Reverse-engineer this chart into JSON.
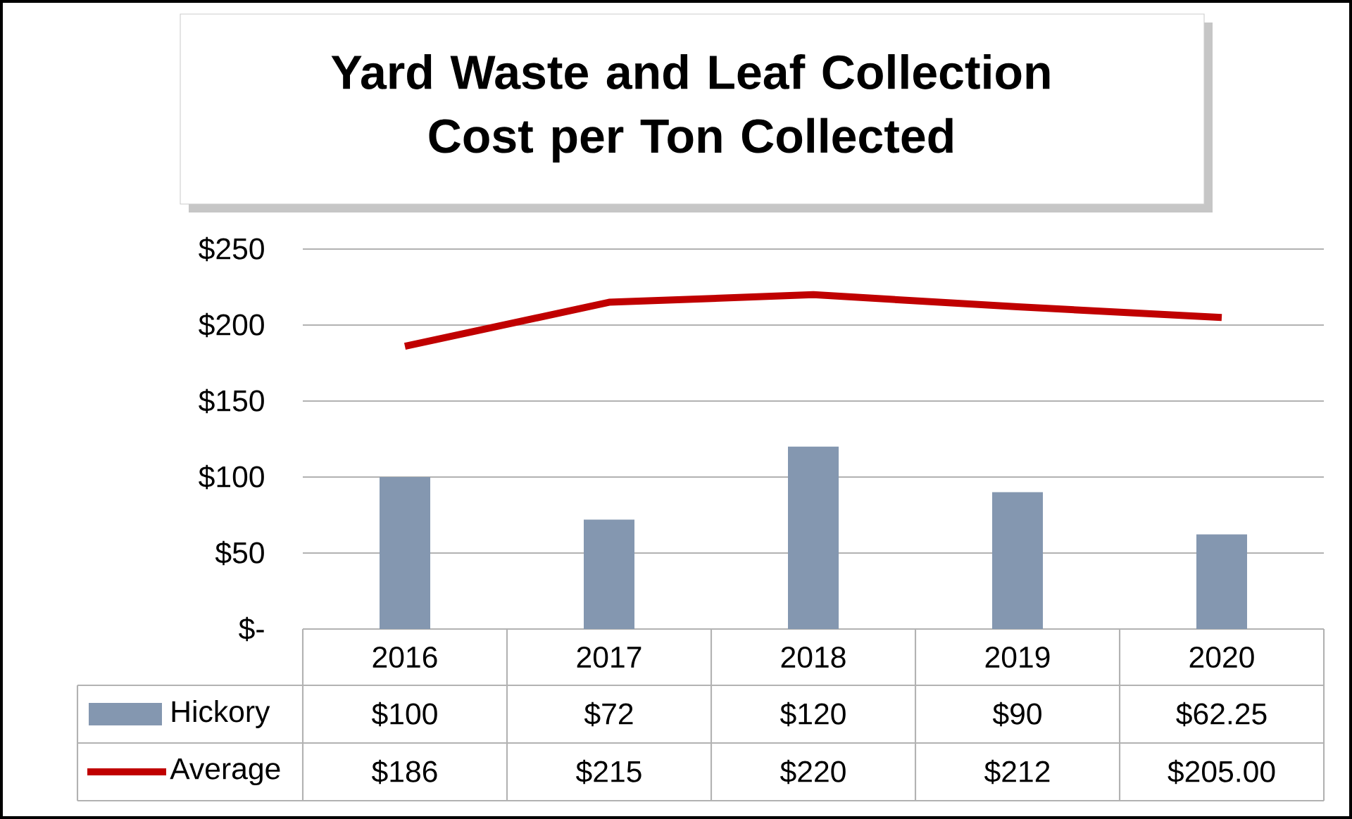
{
  "chart_data": {
    "type": "bar",
    "title": "Yard Waste and Leaf Collection Cost per Ton Collected",
    "categories": [
      "2016",
      "2017",
      "2018",
      "2019",
      "2020"
    ],
    "series": [
      {
        "name": "Hickory",
        "color": "#8497b0",
        "values": [
          100,
          72,
          120,
          90,
          62.25
        ],
        "value_labels": [
          "$100",
          "$72",
          "$120",
          "$90",
          "$62.25"
        ]
      },
      {
        "name": "Average",
        "type": "line",
        "color": "#c00000",
        "line_style": "solid",
        "values": [
          186,
          215,
          220,
          212,
          205.0
        ],
        "value_labels": [
          "$186",
          "$215",
          "$220",
          "$212",
          "$205.00"
        ]
      }
    ],
    "ylim": [
      0,
      250
    ],
    "yticks": [
      {
        "value": 0,
        "label": "$-"
      },
      {
        "value": 50,
        "label": "$50"
      },
      {
        "value": 100,
        "label": "$100"
      },
      {
        "value": 150,
        "label": "$150"
      },
      {
        "value": 200,
        "label": "$200"
      },
      {
        "value": 250,
        "label": "$250"
      }
    ],
    "grid": "y",
    "legend": "bottom"
  }
}
